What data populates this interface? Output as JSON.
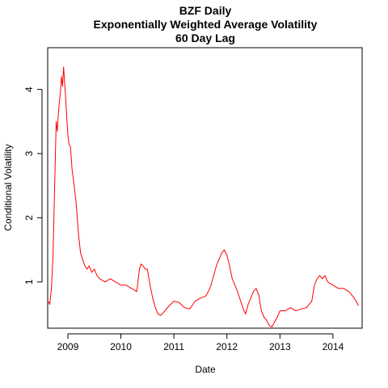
{
  "chart_data": {
    "type": "line",
    "title": [
      "BZF Daily",
      "Exponentially Weighted Average Volatility",
      "60 Day Lag"
    ],
    "xlabel": "Date",
    "ylabel": "Conditional Volatility",
    "x_ticks": [
      "2009",
      "2010",
      "2011",
      "2012",
      "2013",
      "2014"
    ],
    "y_ticks": [
      1,
      2,
      3,
      4
    ],
    "xlim": [
      2008.62,
      2014.55
    ],
    "ylim": [
      0.28,
      4.65
    ],
    "line_color": "#ff0000",
    "grid": false,
    "series": [
      {
        "x": [
          2008.63,
          2008.66,
          2008.69,
          2008.72,
          2008.74,
          2008.76,
          2008.78,
          2008.8,
          2008.82,
          2008.84,
          2008.86,
          2008.88,
          2008.9,
          2008.92,
          2008.94,
          2008.96,
          2008.98,
          2009.0,
          2009.02,
          2009.05,
          2009.08,
          2009.12,
          2009.16,
          2009.2,
          2009.24,
          2009.28,
          2009.32,
          2009.36,
          2009.4,
          2009.45,
          2009.5,
          2009.55,
          2009.6,
          2009.7,
          2009.8,
          2009.9,
          2010.0,
          2010.1,
          2010.2,
          2010.3,
          2010.35,
          2010.38,
          2010.42,
          2010.46,
          2010.5,
          2010.55,
          2010.6,
          2010.65,
          2010.7,
          2010.75,
          2010.8,
          2010.9,
          2011.0,
          2011.1,
          2011.2,
          2011.3,
          2011.4,
          2011.5,
          2011.6,
          2011.65,
          2011.7,
          2011.75,
          2011.8,
          2011.85,
          2011.9,
          2011.95,
          2012.0,
          2012.05,
          2012.1,
          2012.2,
          2012.3,
          2012.35,
          2012.4,
          2012.45,
          2012.5,
          2012.55,
          2012.6,
          2012.65,
          2012.7,
          2012.75,
          2012.8,
          2012.85,
          2012.9,
          2012.95,
          2013.0,
          2013.1,
          2013.2,
          2013.3,
          2013.4,
          2013.5,
          2013.6,
          2013.65,
          2013.7,
          2013.75,
          2013.8,
          2013.85,
          2013.9,
          2014.0,
          2014.1,
          2014.2,
          2014.3,
          2014.4,
          2014.45,
          2014.48
        ],
        "y": [
          0.7,
          0.65,
          0.9,
          1.4,
          2.1,
          2.8,
          3.5,
          3.35,
          3.6,
          3.8,
          3.95,
          4.2,
          4.05,
          4.35,
          4.1,
          3.85,
          3.55,
          3.3,
          3.15,
          3.1,
          2.75,
          2.5,
          2.2,
          1.75,
          1.45,
          1.35,
          1.25,
          1.2,
          1.25,
          1.15,
          1.2,
          1.1,
          1.05,
          1.0,
          1.05,
          1.0,
          0.95,
          0.95,
          0.9,
          0.85,
          1.2,
          1.28,
          1.25,
          1.2,
          1.2,
          0.95,
          0.75,
          0.6,
          0.5,
          0.48,
          0.52,
          0.62,
          0.7,
          0.68,
          0.6,
          0.58,
          0.7,
          0.75,
          0.78,
          0.85,
          0.95,
          1.1,
          1.25,
          1.35,
          1.45,
          1.5,
          1.42,
          1.25,
          1.05,
          0.85,
          0.6,
          0.5,
          0.65,
          0.75,
          0.85,
          0.9,
          0.8,
          0.55,
          0.45,
          0.4,
          0.32,
          0.3,
          0.38,
          0.45,
          0.55,
          0.55,
          0.6,
          0.55,
          0.58,
          0.6,
          0.7,
          0.95,
          1.05,
          1.1,
          1.05,
          1.1,
          1.0,
          0.95,
          0.9,
          0.9,
          0.85,
          0.75,
          0.68,
          0.63
        ]
      }
    ]
  }
}
